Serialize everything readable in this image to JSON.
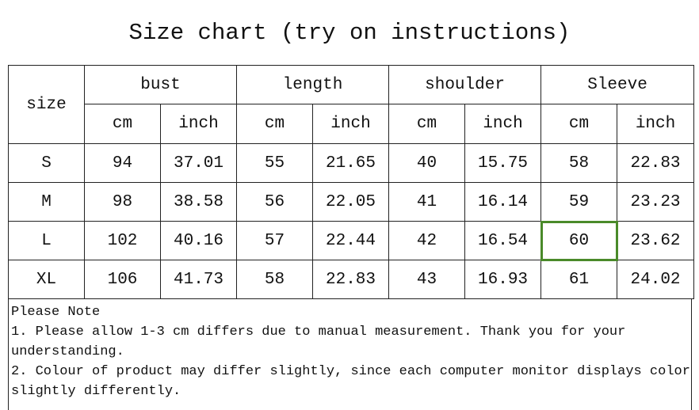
{
  "title": "Size chart (try on instructions)",
  "table": {
    "size_label": "size",
    "groups": [
      "bust",
      "length",
      "shoulder",
      "Sleeve"
    ],
    "units": [
      "cm",
      "inch"
    ],
    "rows": [
      [
        "S",
        "94",
        "37.01",
        "55",
        "21.65",
        "40",
        "15.75",
        "58",
        "22.83"
      ],
      [
        "M",
        "98",
        "38.58",
        "56",
        "22.05",
        "41",
        "16.14",
        "59",
        "23.23"
      ],
      [
        "L",
        "102",
        "40.16",
        "57",
        "22.44",
        "42",
        "16.54",
        "60",
        "23.62"
      ],
      [
        "XL",
        "106",
        "41.73",
        "58",
        "22.83",
        "43",
        "16.93",
        "61",
        "24.02"
      ]
    ],
    "selected_cell_color": "#4a8a2a"
  },
  "note": {
    "heading": "Please Note",
    "lines": [
      "1. Please allow 1-3 cm differs due to manual measurement. Thank you for your understanding.",
      "2. Colour of product may differ slightly, since each computer monitor displays color slightly differently."
    ]
  }
}
